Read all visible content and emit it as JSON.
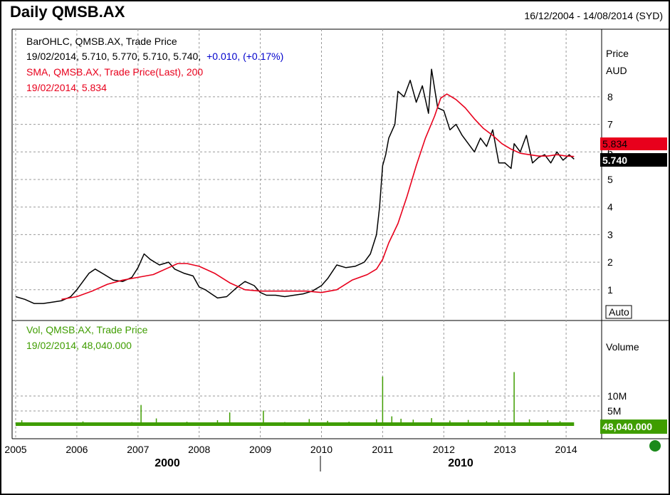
{
  "header": {
    "title": "Daily QMSB.AX",
    "date_range": "16/12/2004 - 14/08/2014 (SYD)"
  },
  "legend": {
    "ohlc_name": "BarOHLC, QMSB.AX, Trade Price",
    "ohlc_values": "19/02/2014, 5.710, 5.770, 5.710, 5.740,",
    "ohlc_change": "+0.010, (+0.17%)",
    "sma_name": "SMA, QMSB.AX, Trade Price(Last), 200",
    "sma_values": "19/02/2014, 5.834",
    "vol_name": "Vol, QMSB.AX, Trade Price",
    "vol_values": "19/02/2014, 48,040.000"
  },
  "price_axis": {
    "title": "Price",
    "unit": "AUD",
    "ticks": [
      "1",
      "2",
      "3",
      "4",
      "5",
      "6",
      "7",
      "8"
    ],
    "sma_badge": "5.834",
    "last_badge": "5.740",
    "auto_button": "Auto"
  },
  "volume_axis": {
    "title": "Volume",
    "ticks": [
      "5M",
      "10M"
    ],
    "last_badge": "48,040.000"
  },
  "x_axis": {
    "year_labels": [
      "2005",
      "2006",
      "2007",
      "2008",
      "2009",
      "2010",
      "2011",
      "2012",
      "2013",
      "2014"
    ],
    "decade_labels": [
      "2000",
      "2010"
    ]
  },
  "colors": {
    "price": "#000000",
    "sma": "#e8001c",
    "volume": "#3f9d00",
    "change": "#0000cc",
    "status_dot": "#1b8a1b",
    "grid": "#9a9a9a"
  },
  "chart_data": [
    {
      "type": "line",
      "title": "Daily QMSB.AX",
      "ylabel": "Price AUD",
      "ylim": [
        0,
        9.3
      ],
      "xlim": [
        2005.0,
        2014.5
      ],
      "grid": true,
      "series": [
        {
          "name": "BarOHLC, QMSB.AX, Trade Price",
          "x": [
            2005.0,
            2005.15,
            2005.3,
            2005.45,
            2005.6,
            2005.75,
            2005.9,
            2006.0,
            2006.1,
            2006.2,
            2006.3,
            2006.45,
            2006.6,
            2006.75,
            2006.9,
            2007.0,
            2007.1,
            2007.2,
            2007.35,
            2007.5,
            2007.6,
            2007.75,
            2007.9,
            2008.0,
            2008.1,
            2008.2,
            2008.3,
            2008.45,
            2008.6,
            2008.75,
            2008.9,
            2009.0,
            2009.1,
            2009.25,
            2009.4,
            2009.55,
            2009.7,
            2009.85,
            2010.0,
            2010.1,
            2010.25,
            2010.4,
            2010.55,
            2010.7,
            2010.8,
            2010.9,
            2010.95,
            2011.0,
            2011.05,
            2011.1,
            2011.2,
            2011.25,
            2011.35,
            2011.45,
            2011.55,
            2011.65,
            2011.75,
            2011.8,
            2011.9,
            2012.0,
            2012.1,
            2012.2,
            2012.3,
            2012.4,
            2012.5,
            2012.6,
            2012.7,
            2012.8,
            2012.9,
            2013.0,
            2013.1,
            2013.15,
            2013.25,
            2013.35,
            2013.45,
            2013.55,
            2013.65,
            2013.75,
            2013.85,
            2013.95,
            2014.05,
            2014.13
          ],
          "values": [
            0.75,
            0.65,
            0.5,
            0.5,
            0.55,
            0.6,
            0.75,
            1.0,
            1.3,
            1.6,
            1.75,
            1.55,
            1.35,
            1.3,
            1.45,
            1.8,
            2.3,
            2.1,
            1.9,
            2.0,
            1.75,
            1.6,
            1.5,
            1.1,
            1.0,
            0.85,
            0.7,
            0.75,
            1.05,
            1.3,
            1.15,
            0.9,
            0.8,
            0.8,
            0.75,
            0.8,
            0.85,
            0.95,
            1.15,
            1.4,
            1.9,
            1.8,
            1.85,
            2.0,
            2.3,
            3.0,
            4.0,
            5.5,
            5.9,
            6.5,
            7.0,
            8.2,
            8.0,
            8.6,
            7.8,
            8.4,
            7.4,
            9.0,
            7.6,
            7.5,
            6.8,
            7.0,
            6.6,
            6.3,
            6.0,
            6.5,
            6.2,
            6.8,
            5.6,
            5.6,
            5.4,
            6.3,
            6.0,
            6.6,
            5.6,
            5.8,
            5.9,
            5.6,
            6.0,
            5.7,
            5.9,
            5.74
          ]
        },
        {
          "name": "SMA, QMSB.AX, Trade Price(Last), 200",
          "x": [
            2005.75,
            2006.0,
            2006.25,
            2006.5,
            2006.75,
            2007.0,
            2007.25,
            2007.5,
            2007.65,
            2007.8,
            2008.0,
            2008.25,
            2008.5,
            2008.75,
            2009.0,
            2009.25,
            2009.5,
            2009.75,
            2010.0,
            2010.25,
            2010.5,
            2010.75,
            2010.9,
            2011.0,
            2011.1,
            2011.25,
            2011.4,
            2011.55,
            2011.7,
            2011.85,
            2011.95,
            2012.05,
            2012.2,
            2012.35,
            2012.5,
            2012.65,
            2012.8,
            2012.95,
            2013.1,
            2013.25,
            2013.4,
            2013.55,
            2013.7,
            2013.85,
            2014.0,
            2014.13
          ],
          "values": [
            0.65,
            0.75,
            0.95,
            1.2,
            1.35,
            1.45,
            1.55,
            1.8,
            1.95,
            1.95,
            1.85,
            1.6,
            1.25,
            1.0,
            0.95,
            0.95,
            0.95,
            0.95,
            0.9,
            1.0,
            1.35,
            1.55,
            1.75,
            2.1,
            2.7,
            3.4,
            4.4,
            5.5,
            6.5,
            7.3,
            7.95,
            8.1,
            7.9,
            7.6,
            7.2,
            6.85,
            6.6,
            6.3,
            6.1,
            5.95,
            5.9,
            5.85,
            5.85,
            5.9,
            5.85,
            5.834
          ]
        }
      ]
    },
    {
      "type": "bar",
      "ylabel": "Volume",
      "ylim": [
        0,
        18000000
      ],
      "series": [
        {
          "name": "Vol, QMSB.AX, Trade Price",
          "x": [
            2005.1,
            2005.6,
            2006.1,
            2006.5,
            2006.9,
            2007.05,
            2007.3,
            2007.8,
            2008.3,
            2008.5,
            2008.8,
            2009.05,
            2009.4,
            2009.8,
            2010.1,
            2010.45,
            2010.9,
            2011.0,
            2011.15,
            2011.3,
            2011.5,
            2011.8,
            2012.1,
            2012.4,
            2012.7,
            2012.9,
            2013.15,
            2013.4,
            2013.7,
            2013.9,
            2014.1
          ],
          "values": [
            1900000,
            800000,
            1500000,
            900000,
            1300000,
            7000000,
            2500000,
            1400000,
            1900000,
            4500000,
            1000000,
            5100000,
            1300000,
            2300000,
            1700000,
            1400000,
            2200000,
            16500000,
            3200000,
            2400000,
            2100000,
            2600000,
            1800000,
            2000000,
            1600000,
            1900000,
            18000000,
            2200000,
            1900000,
            1600000,
            48040
          ]
        }
      ]
    }
  ]
}
